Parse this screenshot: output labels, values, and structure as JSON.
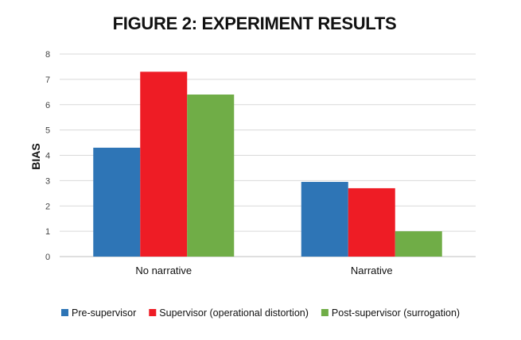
{
  "chart_data": {
    "type": "bar",
    "title": "FIGURE 2: EXPERIMENT RESULTS",
    "xlabel": "",
    "ylabel": "BIAS",
    "ylim": [
      0,
      8
    ],
    "yticks": [
      0,
      1,
      2,
      3,
      4,
      5,
      6,
      7,
      8
    ],
    "grid": true,
    "legend_position": "bottom",
    "categories": [
      "No narrative",
      "Narrative"
    ],
    "series": [
      {
        "name": "Pre-supervisor",
        "color": "#2e75b6",
        "values": [
          4.3,
          2.95
        ]
      },
      {
        "name": "Supervisor (operational distortion)",
        "color": "#ee1c25",
        "values": [
          7.3,
          2.7
        ]
      },
      {
        "name": "Post-supervisor (surrogation)",
        "color": "#70ad47",
        "values": [
          6.4,
          1.0
        ]
      }
    ]
  }
}
